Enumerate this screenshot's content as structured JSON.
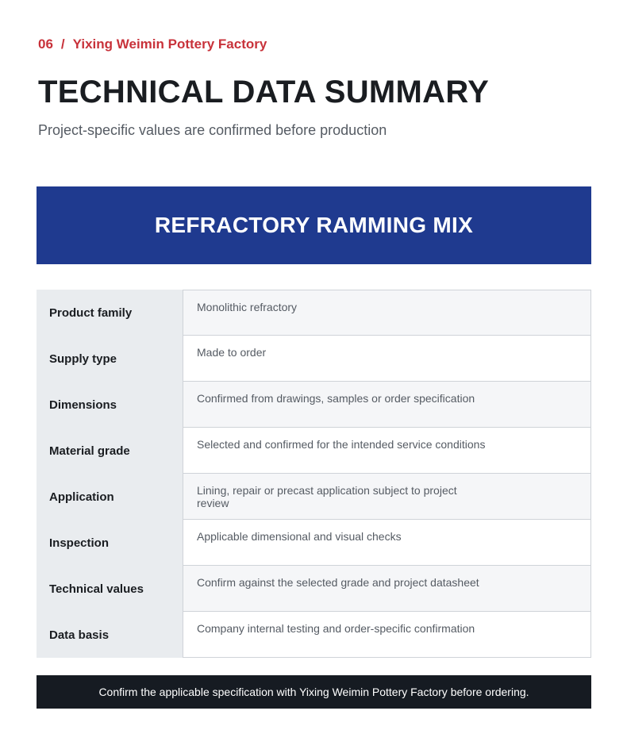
{
  "header": {
    "number": "06",
    "separator": "/",
    "company": "Yixing Weimin Pottery Factory"
  },
  "title": "TECHNICAL DATA SUMMARY",
  "subtitle": "Project-specific values are confirmed before production",
  "banner": "REFRACTORY RAMMING MIX",
  "table": {
    "rows": [
      [
        "Product family",
        "Monolithic refractory"
      ],
      [
        "Supply type",
        "Made to order"
      ],
      [
        "Dimensions",
        "Confirmed from drawings, samples or order specification"
      ],
      [
        "Material grade",
        "Selected and confirmed for the intended service conditions"
      ],
      [
        "Application",
        "Lining, repair or precast application subject to project review"
      ],
      [
        "Inspection",
        "Applicable dimensional and visual checks"
      ],
      [
        "Technical values",
        "Confirm against the selected grade and project datasheet"
      ],
      [
        "Data basis",
        "Company internal testing and order-specific confirmation"
      ]
    ]
  },
  "footer": "Confirm the applicable specification with Yixing Weimin Pottery Factory before ordering."
}
